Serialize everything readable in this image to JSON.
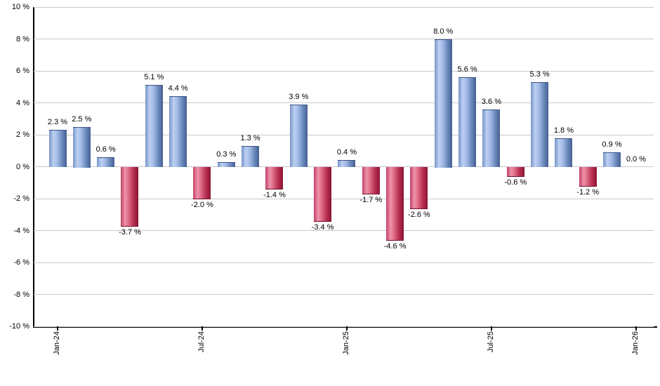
{
  "chart_data": {
    "type": "bar",
    "title": "",
    "xlabel": "",
    "ylabel": "",
    "ylim": [
      -10,
      10
    ],
    "y_tick_step": 2,
    "grid": true,
    "legend": null,
    "y_tick_labels": [
      "10 %",
      "8 %",
      "6 %",
      "4 %",
      "2 %",
      "0 %",
      "-2 %",
      "-4 %",
      "-6 %",
      "-8 %",
      "-10 %"
    ],
    "y_tick_values": [
      10,
      8,
      6,
      4,
      2,
      0,
      -2,
      -4,
      -6,
      -8,
      -10
    ],
    "x_tick_labels": [
      "Jan-24",
      "Jul-24",
      "Jan-25",
      "Jul-25",
      "Jan-26"
    ],
    "x_tick_indices": [
      0,
      6,
      12,
      18,
      24
    ],
    "categories": [
      "Jan-24",
      "Feb-24",
      "Mar-24",
      "Apr-24",
      "May-24",
      "Jun-24",
      "Jul-24",
      "Aug-24",
      "Sep-24",
      "Oct-24",
      "Nov-24",
      "Dec-24",
      "Jan-25",
      "Feb-25",
      "Mar-25",
      "Apr-25",
      "May-25",
      "Jun-25",
      "Jul-25",
      "Aug-25",
      "Sep-25",
      "Oct-25",
      "Nov-25",
      "Dec-25",
      "Jan-26"
    ],
    "values": [
      2.3,
      2.5,
      0.6,
      -3.7,
      5.1,
      4.4,
      -2.0,
      0.3,
      1.3,
      -1.4,
      3.9,
      -3.4,
      0.4,
      -1.7,
      -4.6,
      -2.6,
      8.0,
      5.6,
      3.6,
      -0.6,
      5.3,
      1.8,
      -1.2,
      0.9,
      0.0
    ],
    "value_labels": [
      "2.3 %",
      "2.5 %",
      "0.6 %",
      "-3.7 %",
      "5.1 %",
      "4.4 %",
      "-2.0 %",
      "0.3 %",
      "1.3 %",
      "-1.4 %",
      "3.9 %",
      "-3.4 %",
      "0.4 %",
      "-1.7 %",
      "-4.6 %",
      "-2.6 %",
      "8.0 %",
      "5.6 %",
      "3.6 %",
      "-0.6 %",
      "5.3 %",
      "1.8 %",
      "-1.2 %",
      "0.9 %",
      "0.0 %"
    ],
    "colors": {
      "positive_gradient": [
        "#7795c8",
        "#bcd0f2",
        "#9fb8e4",
        "#6e8cbe",
        "#455f92"
      ],
      "negative_gradient": [
        "#c14166",
        "#ef93ab",
        "#d9647f",
        "#b93055",
        "#8c1430"
      ],
      "positive_cap": "#3c5685",
      "negative_cap": "#731026",
      "gridline": "#c9c9c9",
      "axis": "#000000",
      "label_text": "#000000",
      "background": "#ffffff"
    }
  }
}
